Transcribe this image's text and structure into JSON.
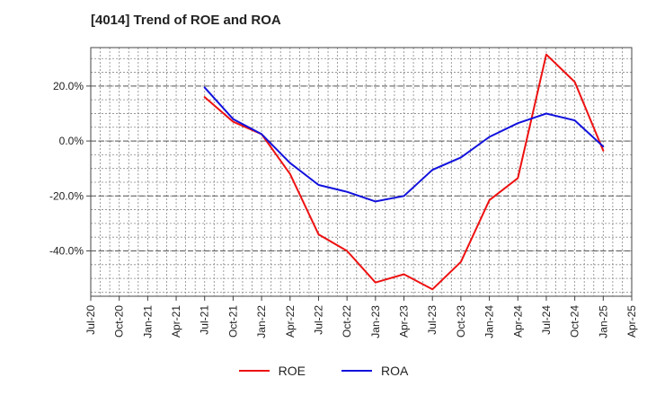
{
  "chart_data": {
    "type": "line",
    "title": "[4014]  Trend of ROE and ROA",
    "xlabel": "",
    "ylabel": "",
    "x_ticks": [
      "Jul-20",
      "Oct-20",
      "Jan-21",
      "Apr-21",
      "Jul-21",
      "Oct-21",
      "Jan-22",
      "Apr-22",
      "Jul-22",
      "Oct-22",
      "Jan-23",
      "Apr-23",
      "Jul-23",
      "Oct-23",
      "Jan-24",
      "Apr-24",
      "Jul-24",
      "Oct-24",
      "Jan-25",
      "Apr-25"
    ],
    "y_ticks": [
      20,
      0,
      -20,
      -40
    ],
    "y_tick_labels": [
      "20.0%",
      "0.0%",
      "-20.0%",
      "-40.0%"
    ],
    "ylim": [
      -56.5,
      34
    ],
    "grid": true,
    "legend_position": "bottom",
    "series": [
      {
        "name": "ROE",
        "color": "#ee1111",
        "x": [
          "Jul-21",
          "Oct-21",
          "Jan-22",
          "Apr-22",
          "Jul-22",
          "Oct-22",
          "Jan-23",
          "Apr-23",
          "Jul-23",
          "Oct-23",
          "Jan-24",
          "Apr-24",
          "Jul-24",
          "Oct-24",
          "Jan-25"
        ],
        "values": [
          16.0,
          7.0,
          2.5,
          -12.0,
          -34.0,
          -40.0,
          -51.5,
          -48.5,
          -54.0,
          -44.0,
          -21.5,
          -13.5,
          31.5,
          21.5,
          -3.5
        ]
      },
      {
        "name": "ROA",
        "color": "#1111dd",
        "x": [
          "Jul-21",
          "Oct-21",
          "Jan-22",
          "Apr-22",
          "Jul-22",
          "Oct-22",
          "Jan-23",
          "Apr-23",
          "Jul-23",
          "Oct-23",
          "Jan-24",
          "Apr-24",
          "Jul-24",
          "Oct-24",
          "Jan-25"
        ],
        "values": [
          19.5,
          8.0,
          2.5,
          -8.0,
          -16.0,
          -18.5,
          -22.0,
          -20.0,
          -10.5,
          -6.0,
          1.5,
          6.5,
          10.0,
          7.5,
          -2.0
        ]
      }
    ]
  }
}
